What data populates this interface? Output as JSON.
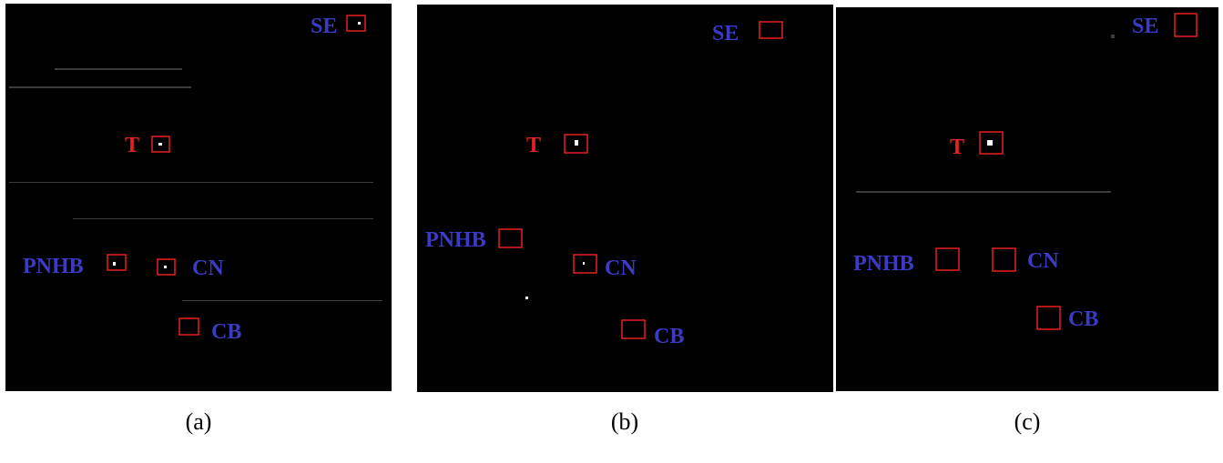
{
  "panels": [
    {
      "caption": "(a)",
      "labels": [
        {
          "text": "SE",
          "color": "#3b3bc4"
        },
        {
          "text": "T",
          "color": "#e8201e"
        },
        {
          "text": "PNHB",
          "color": "#3b3bc4"
        },
        {
          "text": "CN",
          "color": "#3b3bc4"
        },
        {
          "text": "CB",
          "color": "#3b3bc4"
        }
      ]
    },
    {
      "caption": "(b)",
      "labels": [
        {
          "text": "SE",
          "color": "#3b3bc4"
        },
        {
          "text": "T",
          "color": "#e8201e"
        },
        {
          "text": "PNHB",
          "color": "#3b3bc4"
        },
        {
          "text": "CN",
          "color": "#3b3bc4"
        },
        {
          "text": "CB",
          "color": "#3b3bc4"
        }
      ]
    },
    {
      "caption": "(c)",
      "labels": [
        {
          "text": "SE",
          "color": "#3b3bc4"
        },
        {
          "text": "T",
          "color": "#e8201e"
        },
        {
          "text": "PNHB",
          "color": "#3b3bc4"
        },
        {
          "text": "CN",
          "color": "#3b3bc4"
        },
        {
          "text": "CB",
          "color": "#3b3bc4"
        }
      ]
    }
  ]
}
